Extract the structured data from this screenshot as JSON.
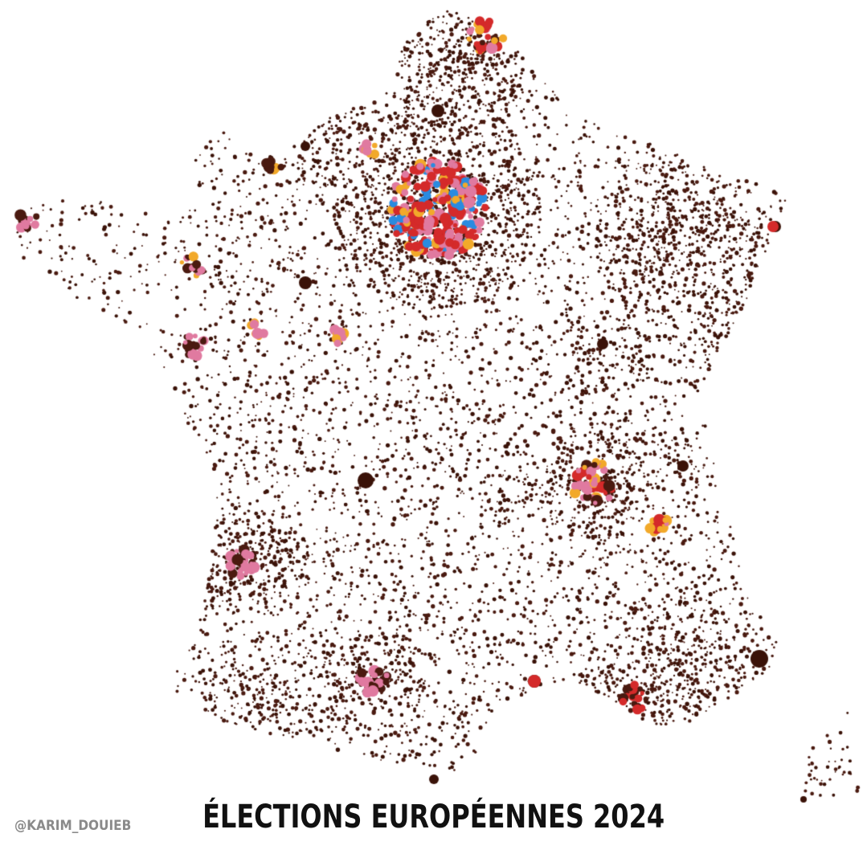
{
  "title": "ÉLECTIONS EUROPÉENNES 2024",
  "credit": "@KARIM_DOUIEB",
  "palette": {
    "dominant": "#4a1a10",
    "dominant_dark": "#3a1208",
    "pink": "#e07aa0",
    "red": "#d42a2a",
    "yellow": "#f2a92a",
    "blue": "#2a8be0",
    "background": "#ffffff"
  }
}
